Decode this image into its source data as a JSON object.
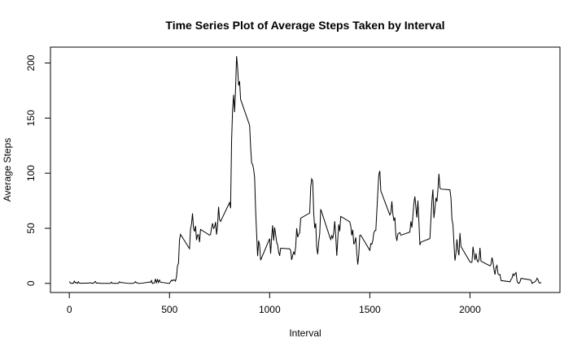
{
  "chart_data": {
    "type": "line",
    "title": "Time Series Plot of Average Steps Taken by Interval",
    "x_label": "Interval",
    "y_label": "Average Steps",
    "color": "#000000",
    "grid": false,
    "xlim": [
      -94.2,
      2449.2
    ],
    "xticks": [
      0,
      500,
      1000,
      1500,
      2000
    ],
    "ylim": [
      -8.25,
      214.4
    ],
    "yticks": [
      0,
      50,
      100,
      150,
      200
    ],
    "x": [
      0,
      5,
      10,
      15,
      20,
      25,
      30,
      35,
      40,
      45,
      50,
      55,
      100,
      105,
      110,
      115,
      120,
      125,
      130,
      135,
      140,
      145,
      150,
      155,
      200,
      205,
      210,
      215,
      220,
      225,
      230,
      235,
      240,
      245,
      250,
      255,
      300,
      305,
      310,
      315,
      320,
      325,
      330,
      335,
      340,
      345,
      350,
      355,
      400,
      405,
      410,
      415,
      420,
      425,
      430,
      435,
      440,
      445,
      450,
      455,
      500,
      505,
      510,
      515,
      520,
      525,
      530,
      535,
      540,
      545,
      550,
      555,
      600,
      605,
      610,
      615,
      620,
      625,
      630,
      635,
      640,
      645,
      650,
      655,
      700,
      705,
      710,
      715,
      720,
      725,
      730,
      735,
      740,
      745,
      750,
      755,
      800,
      805,
      810,
      815,
      820,
      825,
      830,
      835,
      840,
      845,
      850,
      855,
      900,
      905,
      910,
      915,
      920,
      925,
      930,
      935,
      940,
      945,
      950,
      955,
      1000,
      1005,
      1010,
      1015,
      1020,
      1025,
      1030,
      1035,
      1040,
      1045,
      1050,
      1055,
      1100,
      1105,
      1110,
      1115,
      1120,
      1125,
      1130,
      1135,
      1140,
      1145,
      1150,
      1155,
      1200,
      1205,
      1210,
      1215,
      1220,
      1225,
      1230,
      1235,
      1240,
      1245,
      1250,
      1255,
      1300,
      1305,
      1310,
      1315,
      1320,
      1325,
      1330,
      1335,
      1340,
      1345,
      1350,
      1355,
      1400,
      1405,
      1410,
      1415,
      1420,
      1425,
      1430,
      1435,
      1440,
      1445,
      1450,
      1455,
      1500,
      1505,
      1510,
      1515,
      1520,
      1525,
      1530,
      1535,
      1540,
      1545,
      1550,
      1555,
      1600,
      1605,
      1610,
      1615,
      1620,
      1625,
      1630,
      1635,
      1640,
      1645,
      1650,
      1655,
      1700,
      1705,
      1710,
      1715,
      1720,
      1725,
      1730,
      1735,
      1740,
      1745,
      1750,
      1755,
      1800,
      1805,
      1810,
      1815,
      1820,
      1825,
      1830,
      1835,
      1840,
      1845,
      1850,
      1855,
      1900,
      1905,
      1910,
      1915,
      1920,
      1925,
      1930,
      1935,
      1940,
      1945,
      1950,
      1955,
      2000,
      2005,
      2010,
      2015,
      2020,
      2025,
      2030,
      2035,
      2040,
      2045,
      2050,
      2055,
      2100,
      2105,
      2110,
      2115,
      2120,
      2125,
      2130,
      2135,
      2140,
      2145,
      2150,
      2155,
      2200,
      2205,
      2210,
      2215,
      2220,
      2225,
      2230,
      2235,
      2240,
      2245,
      2250,
      2255,
      2300,
      2305,
      2310,
      2315,
      2320,
      2325,
      2330,
      2335,
      2340,
      2345,
      2350,
      2355
    ],
    "values": [
      1.7,
      0.3,
      0.1,
      0.2,
      0.1,
      2.1,
      0.5,
      0.9,
      0,
      1.5,
      0.3,
      0.1,
      0.3,
      0.7,
      0.2,
      0.3,
      0,
      1.1,
      1.8,
      0.2,
      0.2,
      0.4,
      0.3,
      0,
      0,
      0,
      1.1,
      0,
      0,
      0.1,
      0,
      0.2,
      0,
      0,
      1.5,
      0.9,
      0,
      0,
      0,
      0,
      0.2,
      0.6,
      1.6,
      0.6,
      0.5,
      0.1,
      0,
      0,
      1.2,
      0.9,
      2.6,
      0,
      0.3,
      0.4,
      4.1,
      0.7,
      3.5,
      0.8,
      3.1,
      1.1,
      0,
      1.6,
      3,
      2.2,
      3.3,
      3,
      2.1,
      6.1,
      16,
      18.3,
      39.5,
      44.5,
      31.5,
      49.3,
      53.8,
      63.5,
      50,
      47.1,
      52.2,
      39.3,
      44,
      44.2,
      37.4,
      49,
      43.8,
      44.4,
      50.5,
      54.5,
      49.9,
      51,
      55.7,
      44.3,
      52.3,
      69.5,
      57.8,
      56.2,
      73.4,
      68.2,
      129.4,
      157.5,
      171.2,
      155.4,
      177.3,
      206.2,
      195.9,
      179.6,
      183.4,
      167,
      143.5,
      124,
      109.1,
      108.1,
      103.7,
      96,
      66.2,
      45.2,
      24.8,
      38.8,
      35,
      21.1,
      40.6,
      27,
      42.4,
      52.7,
      38.9,
      50.8,
      44.3,
      37.4,
      34.7,
      28.3,
      25.1,
      31.9,
      31.4,
      29.7,
      21.3,
      25.5,
      28.4,
      26.5,
      33.4,
      50,
      42,
      44.6,
      46,
      59.2,
      63.9,
      87.7,
      94.8,
      92.8,
      63.4,
      50.2,
      54.5,
      32.4,
      26.5,
      37.7,
      45.1,
      67.3,
      42.3,
      39.9,
      43.3,
      41,
      46.2,
      56.4,
      42.8,
      25.1,
      40,
      53.5,
      47.3,
      60.8,
      55.8,
      52,
      43.6,
      48.7,
      35.5,
      37.5,
      41.8,
      27.5,
      17.1,
      26.1,
      43.6,
      43.8,
      30,
      36.1,
      35.5,
      38.8,
      46,
      47.8,
      48.1,
      65.3,
      82.9,
      98.7,
      102.1,
      84,
      62.1,
      64.1,
      74.5,
      63.2,
      56.9,
      59.8,
      43.9,
      38.6,
      44.7,
      45.5,
      46.2,
      43.7,
      46.6,
      56.3,
      50.7,
      61.2,
      72.7,
      78.9,
      68.9,
      59.7,
      75.1,
      56.5,
      34.8,
      37.5,
      40.7,
      58,
      74.7,
      85.3,
      59.3,
      67.8,
      77.7,
      74.2,
      85.3,
      99.5,
      86.6,
      85.6,
      84.9,
      77.8,
      58,
      53.4,
      36.3,
      20.7,
      27.4,
      40,
      30.2,
      25.5,
      45.7,
      33.5,
      19.6,
      19,
      19.3,
      33.3,
      26.8,
      21.2,
      27.3,
      21.3,
      19.5,
      21.3,
      32.3,
      20.2,
      15.9,
      17.2,
      23.5,
      19.2,
      12.5,
      8,
      14.7,
      16.3,
      8.7,
      7.8,
      8.1,
      2.6,
      1.5,
      3.7,
      4.8,
      8.5,
      7.1,
      8.7,
      9.8,
      2.2,
      0.3,
      0.1,
      1.6,
      4.6,
      3.3,
      2.8,
      0,
      0.8,
      1,
      1.6,
      2.6,
      4.7,
      3.3,
      0.6,
      0.2,
      1.1
    ]
  }
}
